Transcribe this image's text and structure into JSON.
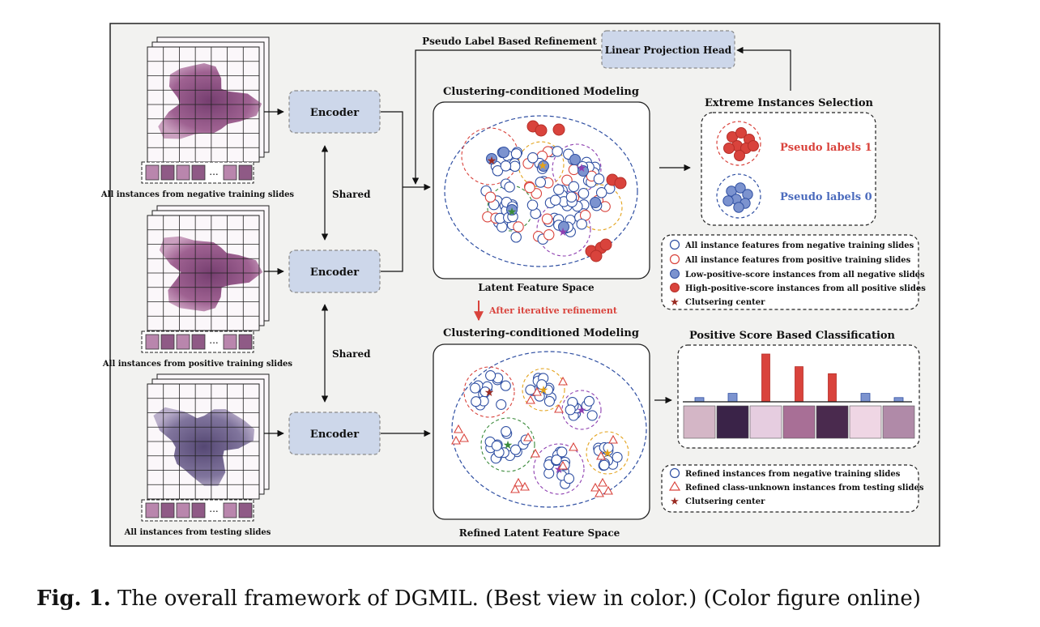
{
  "caption": {
    "label": "Fig. 1.",
    "text": " The overall framework of DGMIL. (Best view in color.) (Color figure online)"
  },
  "slides": {
    "negative": "All instances from negative training slides",
    "positive": "All instances from positive training slides",
    "testing": "All instances from testing slides",
    "ellipsis": "..."
  },
  "encoders": {
    "label": "Encoder",
    "shared": "Shared"
  },
  "refinement": {
    "pseudo_label_refinement": "Pseudo Label Based Refinement",
    "projection_head": "Linear Projection Head",
    "after_iterative": "After iterative refinement"
  },
  "latent": {
    "top_title": "Clustering-conditioned Modeling",
    "top_footer": "Latent Feature Space",
    "bottom_title": "Clustering-conditioned Modeling",
    "bottom_footer": "Refined Latent Feature Space"
  },
  "extreme": {
    "title": "Extreme Instances Selection",
    "pseudo1": "Pseudo labels 1",
    "pseudo0": "Pseudo labels 0"
  },
  "legend_top": [
    "All instance features from negative training slides",
    "All instance features from positive training slides",
    "Low-positive-score instances from all negative slides",
    "High-positive-score instances from all positive slides",
    "Clutsering center"
  ],
  "classification": {
    "title": "Positive Score Based Classification",
    "scores": [
      0.06,
      0.12,
      0.68,
      0.5,
      0.4,
      0.12,
      0.06
    ],
    "positive": [
      false,
      false,
      true,
      true,
      true,
      false,
      false
    ]
  },
  "legend_bottom": [
    "Refined instances from negative training slides",
    "Refined class-unknown instances from testing slides",
    "Clutsering center"
  ],
  "colors": {
    "red": "#d9433c",
    "blue": "#2f4fa2",
    "blue_fill": "#7c93cf",
    "encoder_fill": "#cdd7ea",
    "panel_bg": "#f2f2f0",
    "tissue": "#7a3c6f"
  }
}
